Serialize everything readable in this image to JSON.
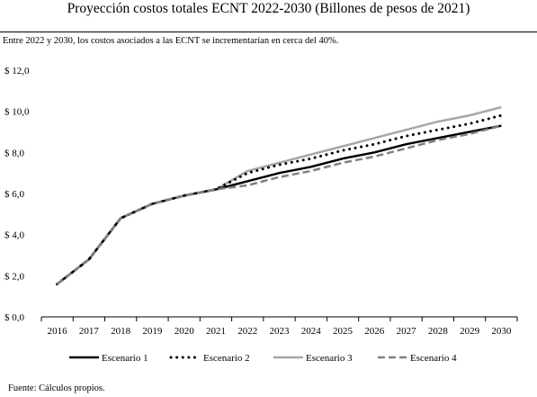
{
  "header": {
    "title": "Proyección costos totales ECNT 2022-2030 (Billones de pesos de 2021)",
    "subtitle": "Entre 2022 y 2030, los costos asociados a las ECNT se incrementarían en cerca del 40%."
  },
  "footer": {
    "source": "Fuente: Cálculos propios."
  },
  "chart_data": {
    "type": "line",
    "x": [
      2016,
      2017,
      2018,
      2019,
      2020,
      2021,
      2022,
      2023,
      2024,
      2025,
      2026,
      2027,
      2028,
      2029,
      2030
    ],
    "ylim": [
      0,
      12
    ],
    "yticks": [
      0,
      2,
      4,
      6,
      8,
      10,
      12
    ],
    "ytick_labels": [
      "$ 0,0",
      "$ 2,0",
      "$ 4,0",
      "$ 6,0",
      "$ 8,0",
      "$ 10,0",
      "$ 12,0"
    ],
    "xlabel": "",
    "ylabel": "",
    "grid": false,
    "legend_position": "bottom",
    "series": [
      {
        "name": "Escenario 1",
        "style": "solid",
        "color": "#000000",
        "values": [
          1.6,
          2.8,
          4.8,
          5.5,
          5.9,
          6.2,
          6.6,
          7.0,
          7.3,
          7.7,
          8.0,
          8.4,
          8.7,
          9.0,
          9.3
        ]
      },
      {
        "name": "Escenario 2",
        "style": "dotted",
        "color": "#000000",
        "values": [
          1.6,
          2.8,
          4.8,
          5.5,
          5.9,
          6.2,
          7.0,
          7.4,
          7.7,
          8.1,
          8.4,
          8.8,
          9.1,
          9.4,
          9.8
        ]
      },
      {
        "name": "Escenario 3",
        "style": "solid",
        "color": "#a6a6a6",
        "values": [
          1.6,
          2.8,
          4.8,
          5.5,
          5.9,
          6.2,
          7.1,
          7.5,
          7.9,
          8.3,
          8.7,
          9.1,
          9.5,
          9.8,
          10.2
        ]
      },
      {
        "name": "Escenario 4",
        "style": "dashed",
        "color": "#808080",
        "values": [
          1.6,
          2.8,
          4.8,
          5.5,
          5.9,
          6.2,
          6.4,
          6.8,
          7.1,
          7.5,
          7.8,
          8.2,
          8.6,
          8.9,
          9.3
        ]
      }
    ]
  }
}
